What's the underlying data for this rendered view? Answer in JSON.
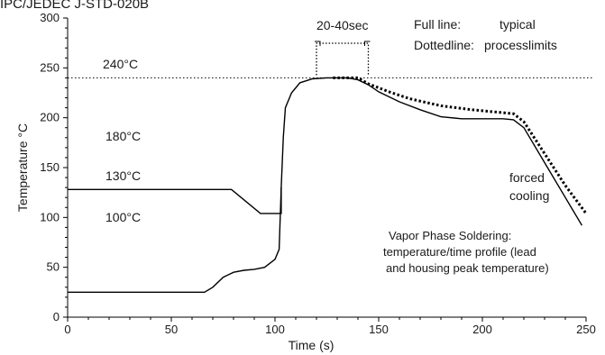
{
  "chart_data": {
    "type": "line",
    "title": "IPC/JEDEC J-STD-020B",
    "xlabel": "Time (s)",
    "ylabel": "Temperature °C",
    "xlim": [
      0,
      250
    ],
    "ylim": [
      0,
      300
    ],
    "xticks": [
      0,
      50,
      100,
      150,
      200,
      250
    ],
    "yticks": [
      0,
      50,
      100,
      150,
      200,
      250,
      300
    ],
    "grid": false,
    "series": [
      {
        "style": "solid",
        "points": [
          [
            0,
            25
          ],
          [
            66,
            25
          ],
          [
            70,
            30
          ],
          [
            75,
            40
          ],
          [
            80,
            45
          ],
          [
            85,
            47
          ],
          [
            90,
            48
          ],
          [
            95,
            50
          ],
          [
            100,
            58
          ],
          [
            102,
            68
          ],
          [
            103,
            130
          ],
          [
            104,
            180
          ],
          [
            105,
            210
          ],
          [
            108,
            225
          ],
          [
            112,
            235
          ],
          [
            118,
            239
          ],
          [
            125,
            240
          ],
          [
            135,
            240
          ],
          [
            140,
            238
          ],
          [
            145,
            233
          ],
          [
            150,
            226
          ],
          [
            160,
            216
          ],
          [
            170,
            208
          ],
          [
            180,
            201
          ],
          [
            190,
            199
          ],
          [
            200,
            199
          ],
          [
            210,
            199
          ],
          [
            215,
            198
          ],
          [
            220,
            190
          ],
          [
            230,
            155
          ],
          [
            240,
            120
          ],
          [
            248,
            92
          ]
        ]
      },
      {
        "style": "solid",
        "points": [
          [
            0,
            128
          ],
          [
            79,
            128
          ],
          [
            93,
            104
          ],
          [
            103,
            104
          ],
          [
            103,
            130
          ]
        ]
      },
      {
        "style": "dotted",
        "points": [
          [
            128,
            240
          ],
          [
            140,
            240
          ],
          [
            145,
            234
          ],
          [
            155,
            226
          ],
          [
            165,
            219
          ],
          [
            180,
            212
          ],
          [
            195,
            208
          ],
          [
            205,
            206
          ],
          [
            210,
            205
          ],
          [
            215,
            204
          ],
          [
            220,
            196
          ],
          [
            230,
            164
          ],
          [
            240,
            132
          ],
          [
            250,
            104
          ]
        ]
      }
    ],
    "reference_line": {
      "y": 240,
      "style": "dotted"
    },
    "time_bracket": {
      "x_start": 120,
      "x_end": 145,
      "label": "20-40sec"
    },
    "annotations": {
      "temp_240": "240°C",
      "temp_180": "180°C",
      "temp_130": "130°C",
      "temp_100": "100°C",
      "forced_1": "forced",
      "forced_2": "cooling",
      "legend_full_key": "Full line:",
      "legend_full_val": "typical",
      "legend_dotted_key": "Dottedline:",
      "legend_dotted_val": "processlimits",
      "caption_1": "Vapor Phase Soldering:",
      "caption_2": "temperature/time profile (lead",
      "caption_3": "and housing peak temperature)"
    }
  }
}
